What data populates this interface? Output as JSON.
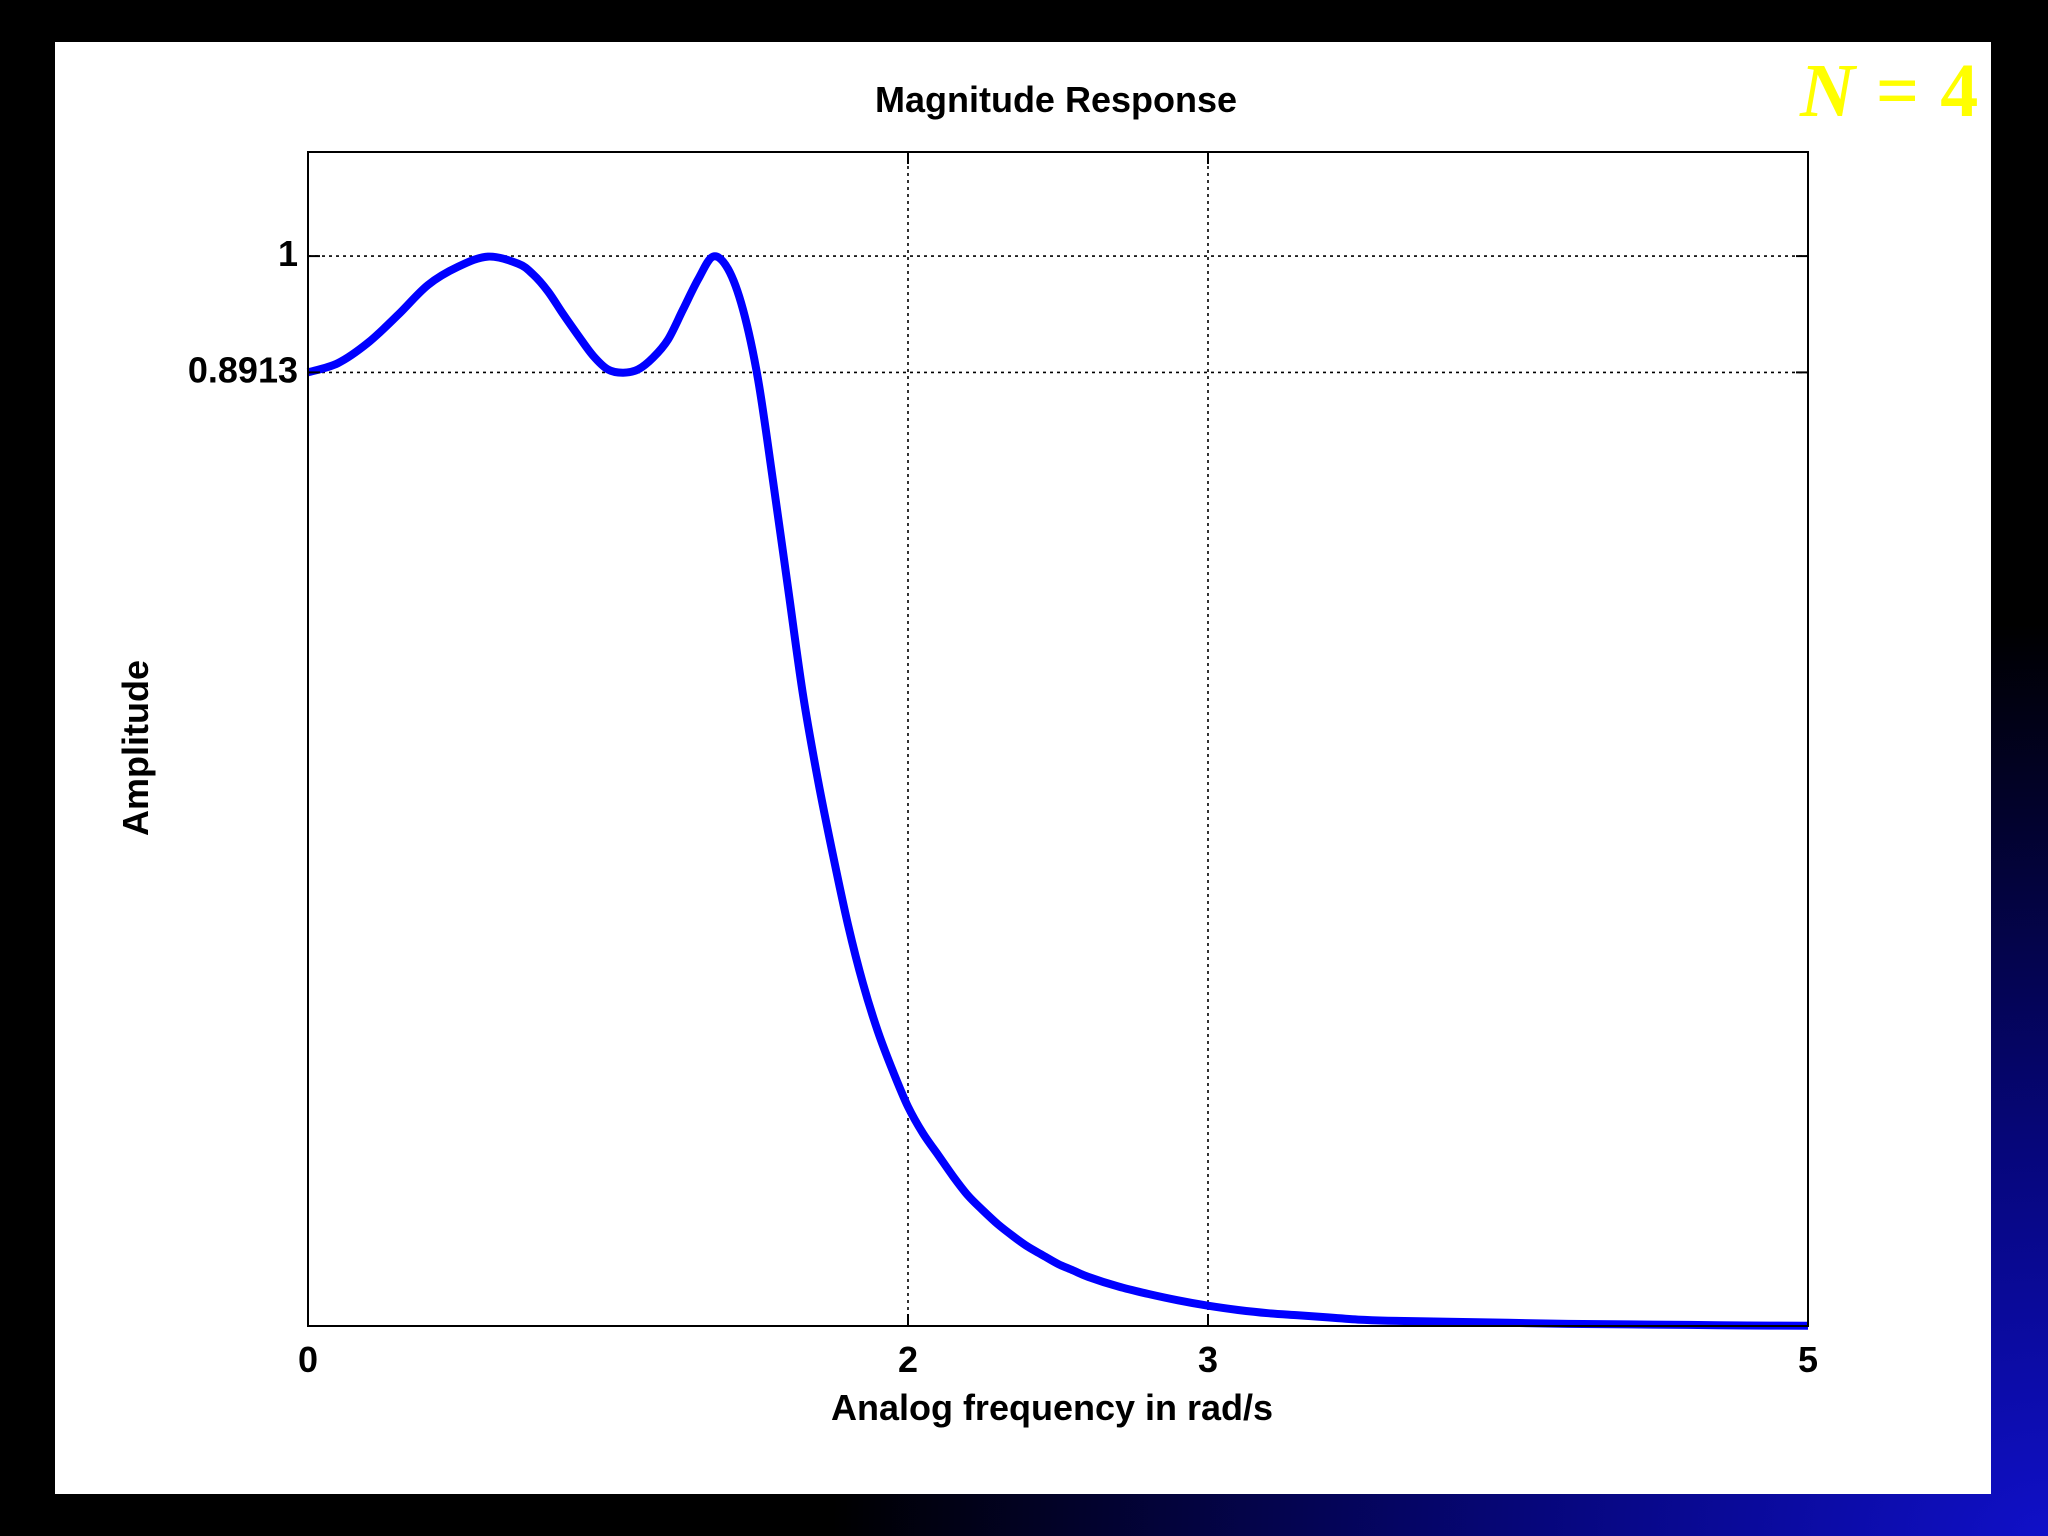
{
  "badge": {
    "var": "N",
    "rest": " = 4"
  },
  "colors": {
    "curve": "#0000ff",
    "badge": "#ffff00",
    "axes": "#000000"
  },
  "chart_data": {
    "type": "line",
    "title": "Magnitude Response",
    "xlabel": "Analog frequency in rad/s",
    "ylabel": "Amplitude",
    "xlim": [
      0,
      5
    ],
    "ylim": [
      0,
      1.0973
    ],
    "xticks": [
      0,
      2,
      3,
      5
    ],
    "xtick_labels": [
      "0",
      "2",
      "3",
      "5"
    ],
    "yticks": [
      0.8913,
      1
    ],
    "ytick_labels": [
      "0.8913",
      "1"
    ],
    "grid": "dotted at ticks",
    "series": [
      {
        "x": [
          0,
          0.1,
          0.2,
          0.3,
          0.4,
          0.5,
          0.6,
          0.7,
          0.75,
          0.8,
          0.85,
          0.9,
          0.95,
          1.0,
          1.05,
          1.1,
          1.15,
          1.2,
          1.25,
          1.3,
          1.35,
          1.4,
          1.45,
          1.5,
          1.55,
          1.6,
          1.65,
          1.7,
          1.75,
          1.8,
          1.85,
          1.9,
          1.95,
          2.0,
          2.05,
          2.1,
          2.15,
          2.2,
          2.25,
          2.3,
          2.35,
          2.4,
          2.45,
          2.5,
          2.55,
          2.6,
          2.7,
          2.8,
          2.9,
          3.0,
          3.1,
          3.2,
          3.3,
          3.4,
          3.5,
          3.6,
          3.8,
          4.0,
          4.2,
          4.4,
          4.6,
          4.8,
          5.0
        ],
        "y": [
          0.8913,
          0.9,
          0.919,
          0.945,
          0.973,
          0.99,
          0.9995,
          0.993,
          0.983,
          0.967,
          0.946,
          0.926,
          0.907,
          0.894,
          0.891,
          0.894,
          0.905,
          0.922,
          0.95,
          0.978,
          0.9995,
          0.988,
          0.95,
          0.885,
          0.79,
          0.69,
          0.59,
          0.51,
          0.44,
          0.375,
          0.32,
          0.275,
          0.238,
          0.205,
          0.18,
          0.16,
          0.14,
          0.122,
          0.108,
          0.095,
          0.084,
          0.074,
          0.066,
          0.058,
          0.052,
          0.046,
          0.037,
          0.03,
          0.024,
          0.019,
          0.015,
          0.012,
          0.01,
          0.008,
          0.006,
          0.005,
          0.004,
          0.003,
          0.002,
          0.0015,
          0.001,
          0.0005,
          0.0003
        ]
      }
    ]
  }
}
